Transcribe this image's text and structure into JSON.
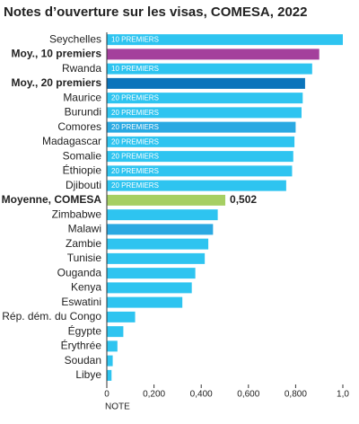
{
  "chart_data": {
    "type": "barh",
    "title": "Notes d’ouverture sur les visas, COMESA, 2022",
    "x_label": "NOTE",
    "categories": [
      "Seychelles",
      "Moy., 10 premiers",
      "Rwanda",
      "Moy., 20 premiers",
      "Maurice",
      "Burundi",
      "Comores",
      "Madagascar",
      "Somalie",
      "Éthiopie",
      "Djibouti",
      "Moyenne, COMESA",
      "Zimbabwe",
      "Malawi",
      "Zambie",
      "Tunisie",
      "Ouganda",
      "Kenya",
      "Eswatini",
      "Rép. dém. du Congo",
      "Égypte",
      "Érythrée",
      "Soudan",
      "Libye"
    ],
    "values": [
      1.0,
      0.9,
      0.87,
      0.84,
      0.83,
      0.825,
      0.8,
      0.795,
      0.79,
      0.785,
      0.76,
      0.502,
      0.47,
      0.45,
      0.43,
      0.415,
      0.375,
      0.36,
      0.32,
      0.12,
      0.07,
      0.045,
      0.025,
      0.02
    ],
    "value_labels": [
      null,
      null,
      null,
      null,
      null,
      null,
      null,
      null,
      null,
      null,
      null,
      "0,502",
      null,
      null,
      null,
      null,
      null,
      null,
      null,
      null,
      null,
      null,
      null,
      null
    ],
    "bar_labels": [
      "10 PREMIERS",
      null,
      "10 PREMIERS",
      null,
      "20 PREMIERS",
      "20 PREMIERS",
      "20 PREMIERS",
      "20 PREMIERS",
      "20 PREMIERS",
      "20 PREMIERS",
      "20 PREMIERS",
      null,
      null,
      null,
      null,
      null,
      null,
      null,
      null,
      null,
      null,
      null,
      null,
      null
    ],
    "colors": [
      "#2ec4f0",
      "#a4409c",
      "#2ec4f0",
      "#0a74bb",
      "#2ec4f0",
      "#2ec4f0",
      "#2aa9e2",
      "#2ec4f0",
      "#2ec4f0",
      "#2ec4f0",
      "#2ec4f0",
      "#a6cf63",
      "#2ec4f0",
      "#2aa9e2",
      "#2ec4f0",
      "#2ec4f0",
      "#2ec4f0",
      "#2ec4f0",
      "#2ec4f0",
      "#2ec4f0",
      "#2ec4f0",
      "#2ec4f0",
      "#2ec4f0",
      "#2ec4f0"
    ],
    "label_bold": [
      false,
      true,
      false,
      true,
      false,
      false,
      false,
      false,
      false,
      false,
      false,
      true,
      false,
      false,
      false,
      false,
      false,
      false,
      false,
      false,
      false,
      false,
      false,
      false
    ],
    "xlim": [
      0,
      1.0
    ],
    "xticks": [
      0,
      {
        "value": 0.2,
        "label": "0,200"
      },
      {
        "value": 0.4,
        "label": "0,400"
      },
      {
        "value": 0.6,
        "label": "0,600"
      },
      {
        "value": 0.8,
        "label": "0,800"
      },
      {
        "value": 1.0,
        "label": "1,0"
      }
    ]
  }
}
